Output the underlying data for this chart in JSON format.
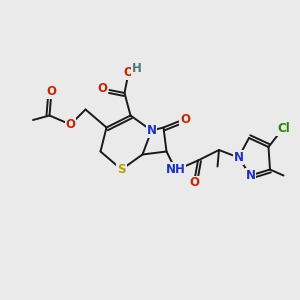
{
  "bg_color": "#eaeaea",
  "bond_color": "#1a1a1a",
  "bond_width": 1.4,
  "atoms": {
    "S": {
      "color": "#b8a000",
      "fontsize": 8.5,
      "fontweight": "bold"
    },
    "N": {
      "color": "#1a30cc",
      "fontsize": 8.5,
      "fontweight": "bold"
    },
    "O": {
      "color": "#cc2200",
      "fontsize": 8.5,
      "fontweight": "bold"
    },
    "Cl": {
      "color": "#228800",
      "fontsize": 8.5,
      "fontweight": "bold"
    },
    "H": {
      "color": "#4a7a7a",
      "fontsize": 8.5,
      "fontweight": "bold"
    }
  }
}
